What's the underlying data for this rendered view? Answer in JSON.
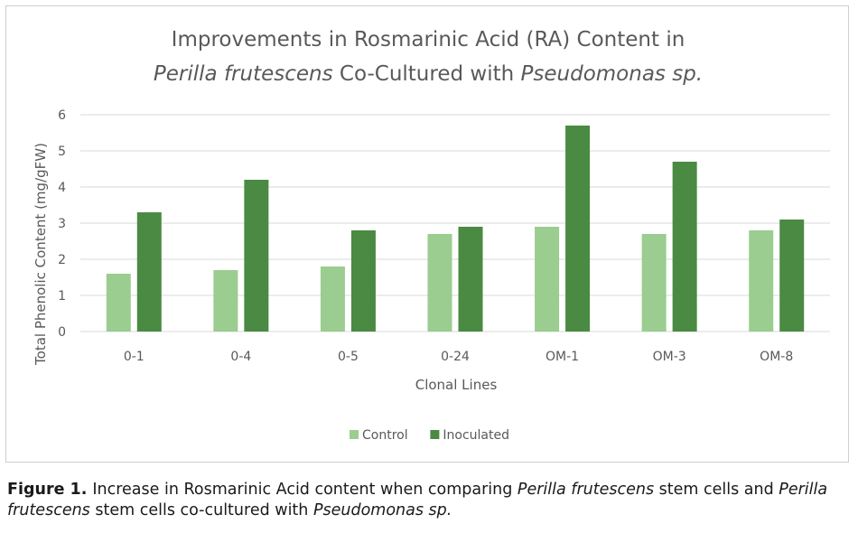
{
  "chart_data": {
    "type": "bar",
    "title_line1": "Improvements in Rosmarinic Acid (RA) Content in",
    "title_line2": [
      {
        "text": "Perilla frutescens",
        "italic": true
      },
      {
        "text": " Co-Cultured with ",
        "italic": false
      },
      {
        "text": "Pseudomonas sp.",
        "italic": true
      }
    ],
    "xlabel": "Clonal Lines",
    "ylabel": "Total Phenolic Content (mg/gFW)",
    "ylim": [
      0,
      6
    ],
    "yticks": [
      0,
      1,
      2,
      3,
      4,
      5,
      6
    ],
    "grid": true,
    "legend_position": "bottom",
    "categories": [
      "0-1",
      "0-4",
      "0-5",
      "0-24",
      "OM-1",
      "OM-3",
      "OM-8"
    ],
    "series": [
      {
        "name": "Control",
        "color": "#9acd8f",
        "values": [
          1.6,
          1.7,
          1.8,
          2.7,
          2.9,
          2.7,
          2.8
        ]
      },
      {
        "name": "Inoculated",
        "color": "#4a8a42",
        "values": [
          3.3,
          4.2,
          2.8,
          2.9,
          5.7,
          4.7,
          3.1
        ]
      }
    ]
  },
  "caption": {
    "label": "Figure 1.",
    "parts": [
      {
        "text": "Increase in Rosmarinic Acid content when comparing ",
        "italic": false
      },
      {
        "text": "Perilla frutescens",
        "italic": true
      },
      {
        "text": " stem cells and ",
        "italic": false
      },
      {
        "text": "Perilla frutescens",
        "italic": true
      },
      {
        "text": " stem cells co-cultured with ",
        "italic": false
      },
      {
        "text": "Pseudomonas sp.",
        "italic": true
      }
    ]
  }
}
